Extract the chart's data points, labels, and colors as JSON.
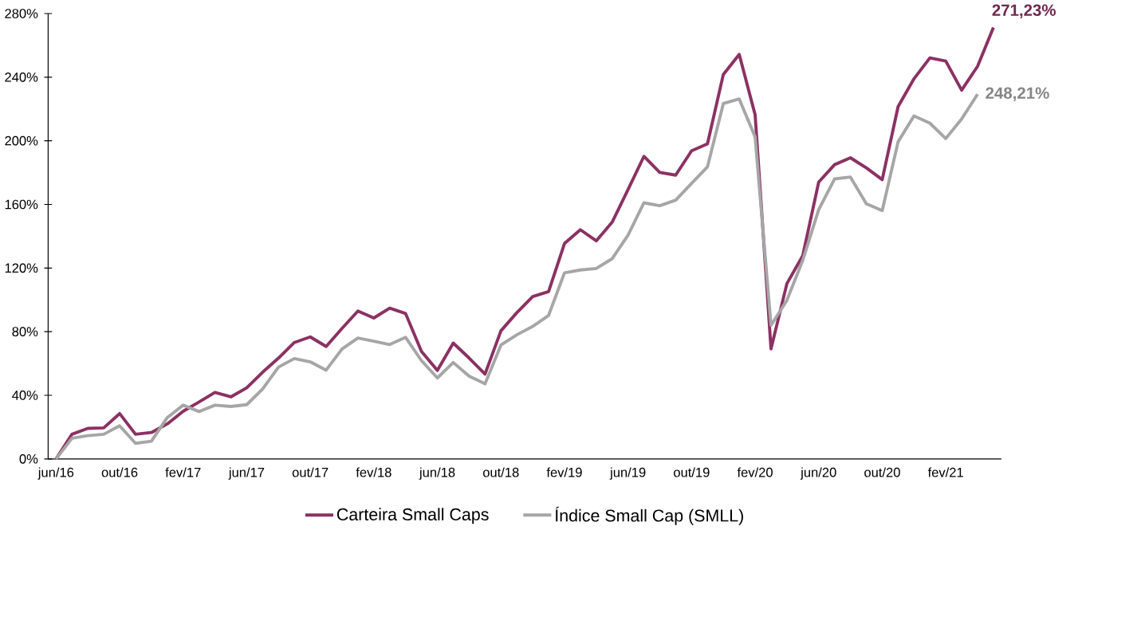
{
  "chart_data": {
    "type": "line",
    "categories": [
      "jun/16",
      null,
      null,
      null,
      "out/16",
      null,
      null,
      null,
      "fev/17",
      null,
      null,
      null,
      "jun/17",
      null,
      null,
      null,
      "out/17",
      null,
      null,
      null,
      "fev/18",
      null,
      null,
      null,
      "jun/18",
      null,
      null,
      null,
      "out/18",
      null,
      null,
      null,
      "fev/19",
      null,
      null,
      null,
      "jun/19",
      null,
      null,
      null,
      "out/19",
      null,
      null,
      null,
      "fev/20",
      null,
      null,
      null,
      "jun/20",
      null,
      null,
      null,
      "out/20",
      null,
      null,
      null,
      "fev/21",
      null,
      null,
      null
    ],
    "series": [
      {
        "name": "Carteira Small Caps",
        "color": "#8b3163",
        "values": [
          0,
          15.5,
          19.2,
          19.5,
          28.5,
          15.5,
          16.6,
          22,
          30,
          35.8,
          41.8,
          39,
          44.7,
          54.5,
          63.4,
          73.2,
          76.7,
          70.7,
          82.1,
          93,
          88.6,
          94.8,
          91.4,
          67.5,
          55.6,
          72.8,
          63.4,
          53.3,
          80.5,
          91.9,
          102.1,
          105.2,
          135.4,
          144.1,
          137.1,
          148.8,
          169.3,
          190.2,
          180.1,
          178.4,
          193.7,
          198.1,
          241.7,
          254.3,
          216.4,
          69.2,
          110.2,
          127.8,
          174,
          185,
          189.3,
          183,
          175.6,
          221.5,
          239,
          252.1,
          250.1,
          231.8,
          246.8,
          271.23
        ]
      },
      {
        "name": "Índice Small Cap (SMLL)",
        "color": "#a6a6a6",
        "values": [
          0,
          13,
          14.6,
          15.5,
          20.8,
          9.8,
          11.1,
          26,
          33.8,
          29.8,
          33.8,
          33,
          34.1,
          43.9,
          57.7,
          63.1,
          61,
          55.8,
          69.1,
          76,
          74,
          71.9,
          76.4,
          61.8,
          50.9,
          60.6,
          52,
          47.2,
          71.6,
          78,
          83.3,
          90.2,
          117,
          118.8,
          119.7,
          125.9,
          140.6,
          161,
          159.2,
          162.7,
          173.2,
          183.6,
          223.4,
          226.3,
          202.4,
          84,
          99.7,
          124.9,
          156.7,
          176,
          177.2,
          160.4,
          156.1,
          199.4,
          215.6,
          211.1,
          201.4,
          213.7,
          229.3,
          null
        ]
      }
    ],
    "ylim": [
      0,
      280
    ],
    "yticks": [
      {
        "value": 0,
        "label": "0%"
      },
      {
        "value": 40,
        "label": "40%"
      },
      {
        "value": 80,
        "label": "80%"
      },
      {
        "value": 120,
        "label": "120%"
      },
      {
        "value": 160,
        "label": "160%"
      },
      {
        "value": 200,
        "label": "200%"
      },
      {
        "value": 240,
        "label": "240%"
      },
      {
        "value": 280,
        "label": "280%"
      }
    ],
    "annotations": [
      "271,23%",
      "248,21%"
    ],
    "legend": "bottom",
    "grid": false,
    "marker": "none",
    "line_style": "solid"
  }
}
